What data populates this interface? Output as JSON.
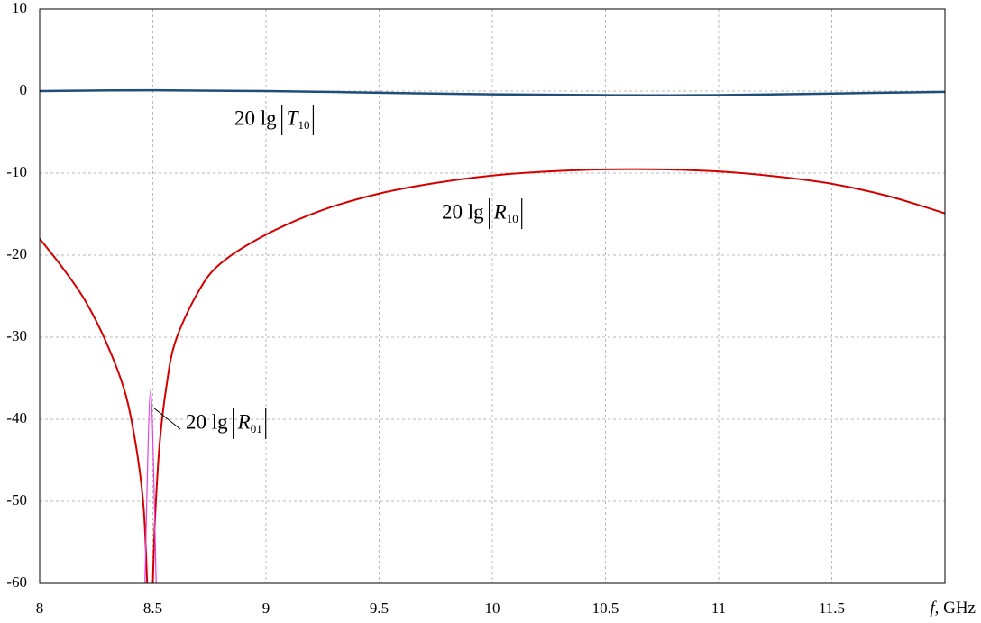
{
  "chart_data": {
    "type": "line",
    "x_label": {
      "symbol": "f",
      "unit": ", GHz"
    },
    "xlim": [
      8,
      12
    ],
    "xticks": [
      8,
      8.5,
      9,
      9.5,
      10,
      10.5,
      11,
      11.5
    ],
    "ylim": [
      -60,
      10
    ],
    "yticks": [
      -60,
      -50,
      -40,
      -30,
      -20,
      -10,
      0,
      10
    ],
    "grid": true,
    "series": [
      {
        "label": {
          "text": "20  lg",
          "symbol": "T",
          "subscript": "10"
        },
        "color": "#1f4e79",
        "width": 2.5,
        "x": [
          8,
          8.5,
          9,
          9.5,
          10,
          10.5,
          11,
          11.5,
          12
        ],
        "values": [
          0,
          0.1,
          0,
          -0.2,
          -0.4,
          -0.5,
          -0.5,
          -0.3,
          -0.1
        ]
      },
      {
        "label": {
          "text": "20  lg",
          "symbol": "R",
          "subscript": "10"
        },
        "color": "#d40000",
        "width": 2,
        "x": [
          8,
          8.1,
          8.2,
          8.3,
          8.38,
          8.43,
          8.46,
          8.475,
          8.49,
          8.5,
          8.51,
          8.53,
          8.56,
          8.6,
          8.7,
          8.8,
          9,
          9.25,
          9.5,
          9.75,
          10,
          10.25,
          10.5,
          10.75,
          11,
          11.25,
          11.5,
          11.75,
          12
        ],
        "values": [
          -18,
          -21.5,
          -25.5,
          -31,
          -37,
          -44,
          -51,
          -60,
          null,
          -60,
          -52,
          -43,
          -36,
          -30.5,
          -24.5,
          -21,
          -17.5,
          -14.5,
          -12.5,
          -11.2,
          -10.3,
          -9.8,
          -9.55,
          -9.55,
          -9.8,
          -10.4,
          -11.3,
          -12.8,
          -14.9
        ]
      },
      {
        "label": {
          "text": "20  lg",
          "symbol": "R",
          "subscript": "01"
        },
        "color": "#e040e0",
        "width": 1.2,
        "x": [
          8.465,
          8.49,
          8.515
        ],
        "values": [
          -60,
          -36.5,
          -60
        ]
      }
    ]
  }
}
